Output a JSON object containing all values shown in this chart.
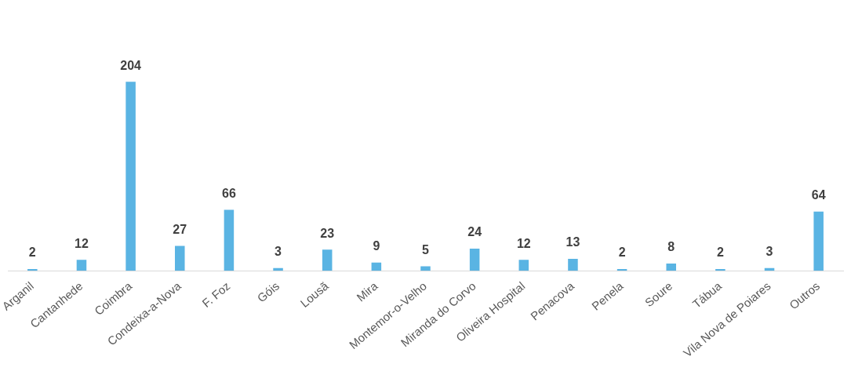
{
  "chart_data": {
    "type": "bar",
    "categories": [
      "Arganil",
      "Cantanhede",
      "Coimbra",
      "Condeixa-a-Nova",
      "F. Foz",
      "Góis",
      "Lousã",
      "Mira",
      "Montemor-o-Velho",
      "Miranda do Corvo",
      "Oliveira Hospital",
      "Penacova",
      "Penela",
      "Soure",
      "Tábua",
      "Vila Nova de Poiares",
      "Outros"
    ],
    "values": [
      2,
      12,
      204,
      27,
      66,
      3,
      23,
      9,
      5,
      24,
      12,
      13,
      2,
      8,
      2,
      3,
      64
    ],
    "color": "#5ab4e3",
    "data_labels": true,
    "grid": false,
    "legend": false
  }
}
